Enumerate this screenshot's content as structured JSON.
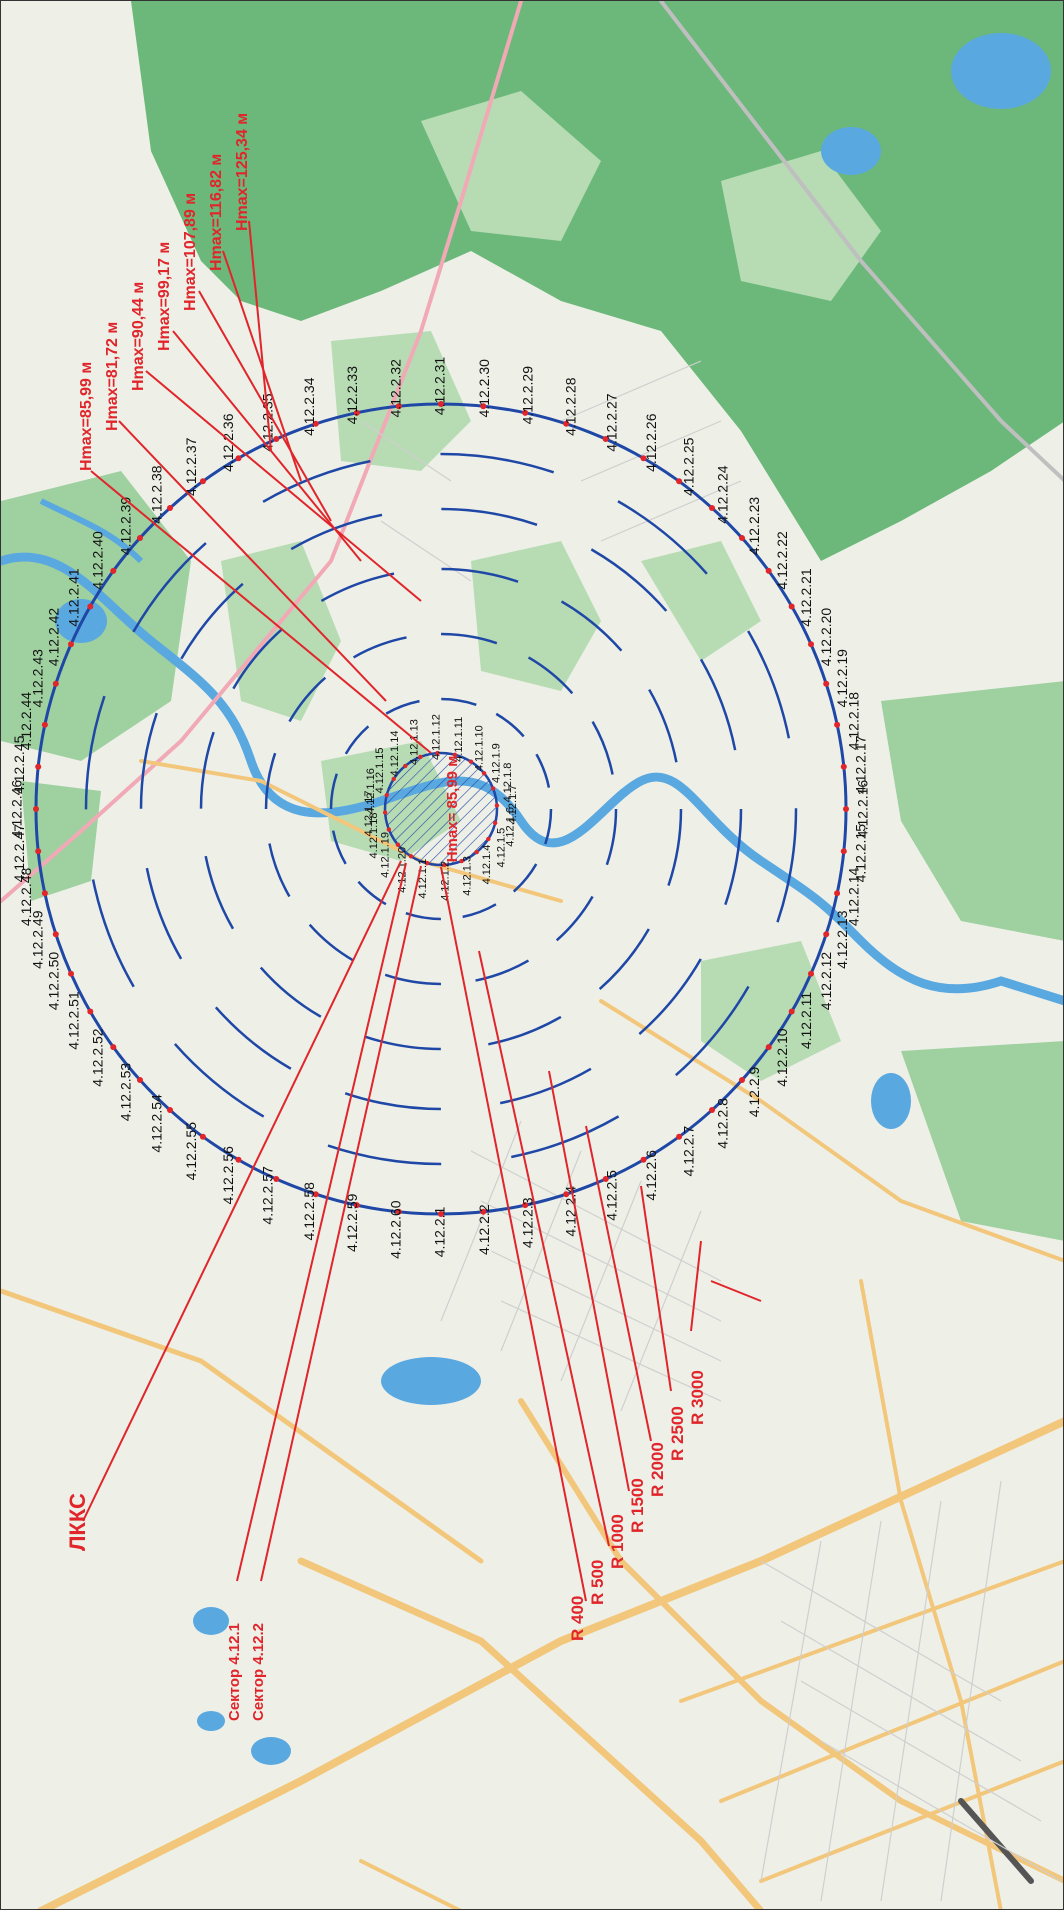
{
  "colors": {
    "land": "#eef0e8",
    "forest": "#6cb87a",
    "forest_light": "#b7dcb4",
    "water": "#5aa8e0",
    "road": "#f2c77c",
    "circle": "#1f47a6",
    "red": "#e0252b"
  },
  "labels": {
    "lkks": "ЛККС",
    "sector1": "Сектор 4.12.1",
    "sector2": "Сектор 4.12.2",
    "center_hmax": "Hmax= 85,99 м"
  },
  "radius_labels": [
    "R 400",
    "R 500",
    "R 1000",
    "R 1500",
    "R 2000",
    "R 2500",
    "R 3000"
  ],
  "hmax_labels": [
    "Hmax=85,99 м",
    "Hmax=81,72 м",
    "Hmax=90,44 м",
    "Hmax=99,17 м",
    "Hmax=107,89 м",
    "Hmax=116,82 м",
    "Hmax=125,34 м"
  ],
  "outer_points": [
    "4.12.2.1",
    "4.12.2.2",
    "4.12.2.3",
    "4.12.2.4",
    "4.12.2.5",
    "4.12.2.6",
    "4.12.2.7",
    "4.12.2.8",
    "4.12.2.9",
    "4.12.2.10",
    "4.12.2.11",
    "4.12.2.12",
    "4.12.2.13",
    "4.12.2.14",
    "4.12.2.15",
    "4.12.2.16",
    "4.12.2.17",
    "4.12.2.18",
    "4.12.2.19",
    "4.12.2.20",
    "4.12.2.21",
    "4.12.2.22",
    "4.12.2.23",
    "4.12.2.24",
    "4.12.2.25",
    "4.12.2.26",
    "4.12.2.27",
    "4.12.2.28",
    "4.12.2.29",
    "4.12.2.30",
    "4.12.2.31",
    "4.12.2.32",
    "4.12.2.33",
    "4.12.2.34",
    "4.12.2.35",
    "4.12.2.36",
    "4.12.2.37",
    "4.12.2.38",
    "4.12.2.39",
    "4.12.2.40",
    "4.12.2.41",
    "4.12.2.42",
    "4.12.2.43",
    "4.12.2.44",
    "4.12.2.45",
    "4.12.2.46",
    "4.12.2.47",
    "4.12.2.48",
    "4.12.2.49",
    "4.12.2.50",
    "4.12.2.51",
    "4.12.2.52",
    "4.12.2.53",
    "4.12.2.54",
    "4.12.2.55",
    "4.12.2.56",
    "4.12.2.57",
    "4.12.2.58",
    "4.12.2.59",
    "4.12.2.60"
  ],
  "inner_points": [
    "4.12.1.1",
    "4.12.1.2",
    "4.12.1.3",
    "4.12.1.4",
    "4.12.1.5",
    "4.12.1.6",
    "4.12.1.7",
    "4.12.1.8",
    "4.12.1.9",
    "4.12.1.10",
    "4.12.1.11",
    "4.12.1.12",
    "4.12.1.13",
    "4.12.1.14",
    "4.12.1.15",
    "4.12.1.16",
    "4.12.1.17",
    "4.12.1.18",
    "4.12.1.19",
    "4.12.1.20"
  ]
}
